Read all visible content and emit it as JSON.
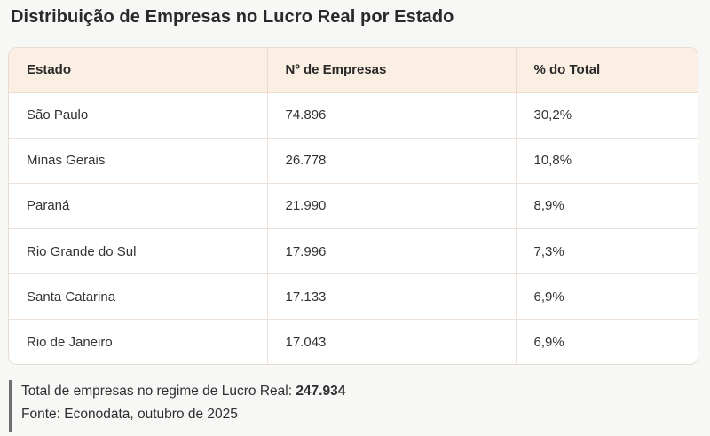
{
  "title": "Distribuição de Empresas no Lucro Real por Estado",
  "table": {
    "headers": [
      "Estado",
      "Nº de Empresas",
      "% do Total"
    ],
    "rows": [
      [
        "São Paulo",
        "74.896",
        "30,2%"
      ],
      [
        "Minas Gerais",
        "26.778",
        "10,8%"
      ],
      [
        "Paraná",
        "21.990",
        "8,9%"
      ],
      [
        "Rio Grande do Sul",
        "17.996",
        "7,3%"
      ],
      [
        "Santa Catarina",
        "17.133",
        "6,9%"
      ],
      [
        "Rio de Janeiro",
        "17.043",
        "6,9%"
      ]
    ]
  },
  "footer": {
    "total_label": "Total de empresas no regime de Lucro Real:",
    "total_value": "247.934",
    "source": "Fonte: Econodata, outubro de 2025"
  },
  "colors": {
    "header_background": "#fbeee3",
    "border": "#e6dcd2",
    "footer_bar": "#6f6f6f"
  }
}
